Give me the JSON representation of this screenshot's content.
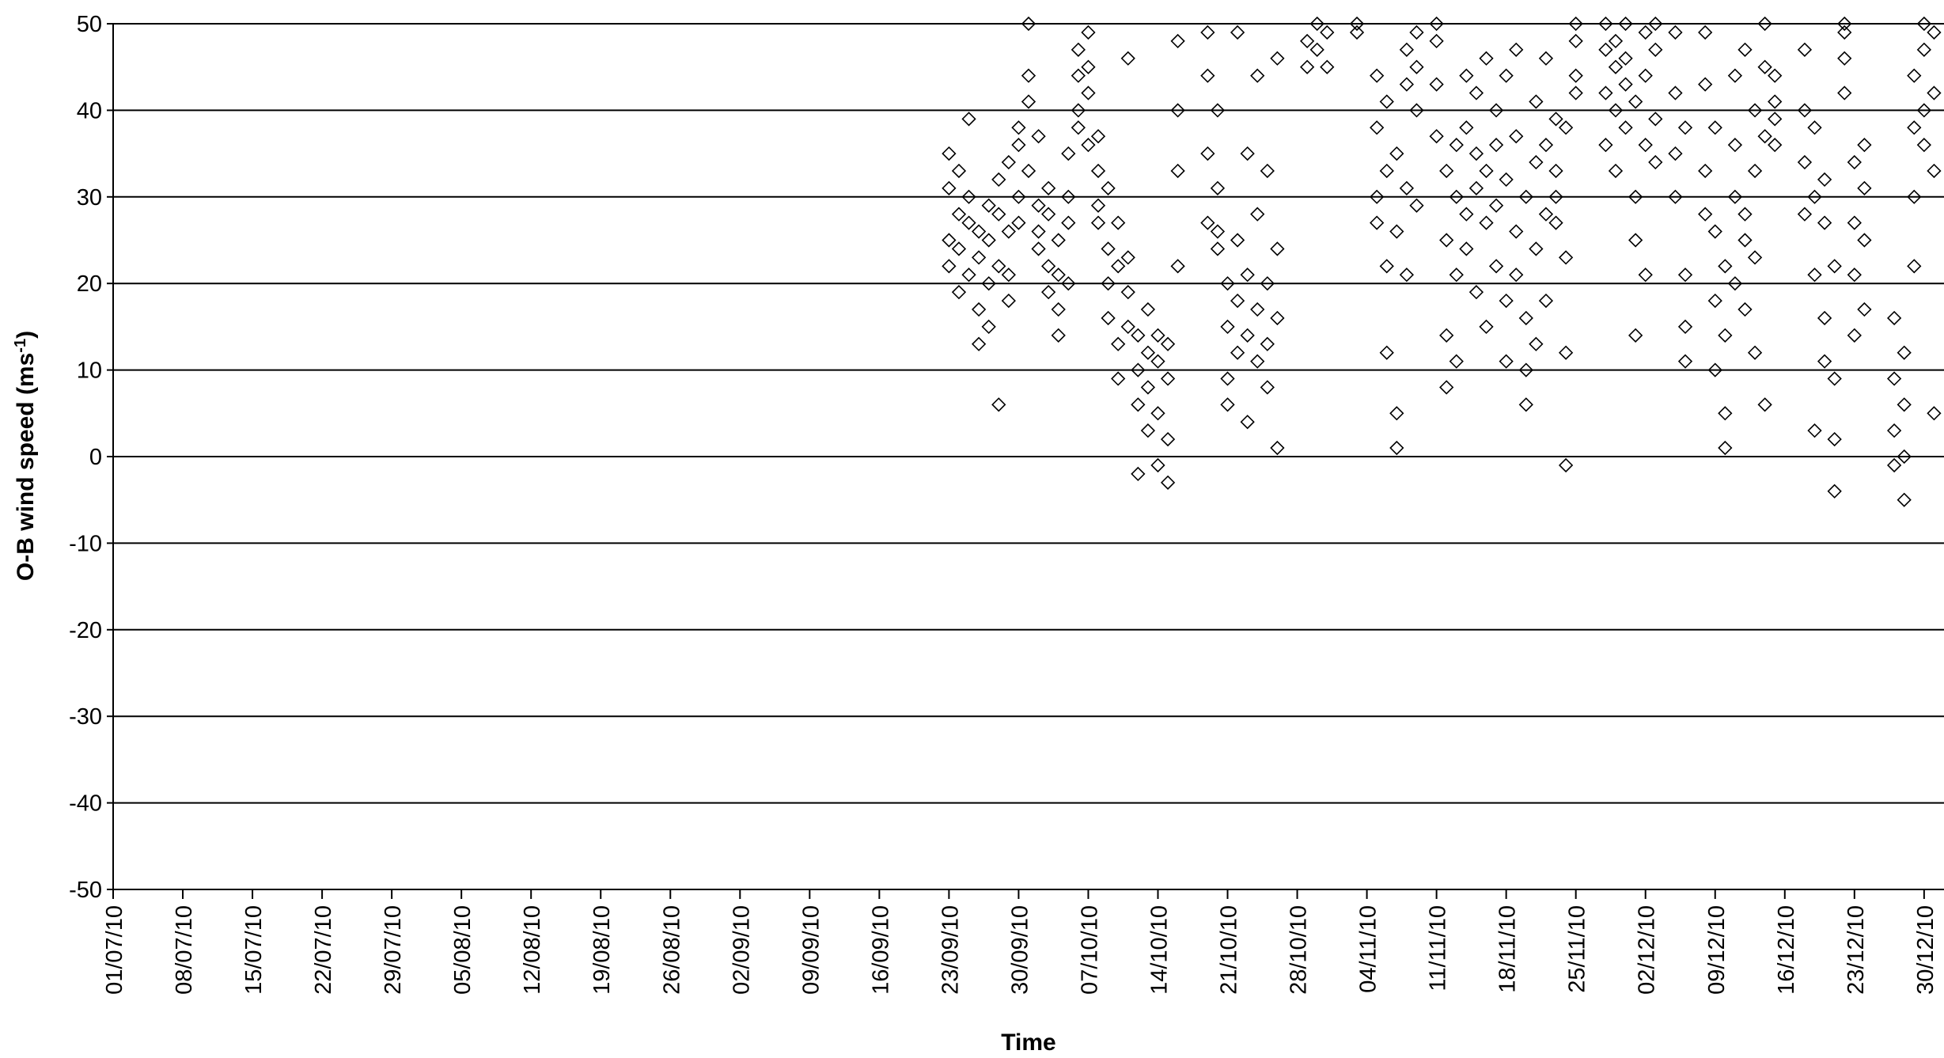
{
  "chart_data": {
    "type": "scatter",
    "xlabel": "Time",
    "ylabel": "O-B wind speed (ms",
    "ylabel_sup": "-1",
    "ylabel_close": ")",
    "ylim": [
      -50,
      50
    ],
    "yticks": [
      50,
      40,
      30,
      20,
      10,
      0,
      -10,
      -20,
      -30,
      -40,
      -50
    ],
    "xlim": [
      "2010-07-01",
      "2010-12-31"
    ],
    "xticks": [
      "01/07/10",
      "08/07/10",
      "15/07/10",
      "22/07/10",
      "29/07/10",
      "05/08/10",
      "12/08/10",
      "19/08/10",
      "26/08/10",
      "02/09/10",
      "09/09/10",
      "16/09/10",
      "23/09/10",
      "30/09/10",
      "07/10/10",
      "14/10/10",
      "21/10/10",
      "28/10/10",
      "04/11/10",
      "11/11/10",
      "18/11/10",
      "25/11/10",
      "02/12/10",
      "09/12/10",
      "16/12/10",
      "23/12/10",
      "30/12/10"
    ],
    "grid": "horizontal",
    "marker": "hollow-diamond",
    "marker_color": "#000000",
    "points": [
      [
        "2010-09-23",
        25
      ],
      [
        "2010-09-23",
        31
      ],
      [
        "2010-09-23",
        35
      ],
      [
        "2010-09-23",
        22
      ],
      [
        "2010-09-24",
        28
      ],
      [
        "2010-09-24",
        19
      ],
      [
        "2010-09-24",
        33
      ],
      [
        "2010-09-24",
        24
      ],
      [
        "2010-09-25",
        21
      ],
      [
        "2010-09-25",
        27
      ],
      [
        "2010-09-25",
        39
      ],
      [
        "2010-09-25",
        30
      ],
      [
        "2010-09-26",
        23
      ],
      [
        "2010-09-26",
        17
      ],
      [
        "2010-09-26",
        26
      ],
      [
        "2010-09-26",
        13
      ],
      [
        "2010-09-27",
        20
      ],
      [
        "2010-09-27",
        25
      ],
      [
        "2010-09-27",
        29
      ],
      [
        "2010-09-27",
        15
      ],
      [
        "2010-09-28",
        22
      ],
      [
        "2010-09-28",
        28
      ],
      [
        "2010-09-28",
        32
      ],
      [
        "2010-09-28",
        6
      ],
      [
        "2010-09-29",
        26
      ],
      [
        "2010-09-29",
        21
      ],
      [
        "2010-09-29",
        34
      ],
      [
        "2010-09-29",
        18
      ],
      [
        "2010-09-30",
        30
      ],
      [
        "2010-09-30",
        38
      ],
      [
        "2010-09-30",
        36
      ],
      [
        "2010-09-30",
        27
      ],
      [
        "2010-10-01",
        41
      ],
      [
        "2010-10-01",
        33
      ],
      [
        "2010-10-01",
        44
      ],
      [
        "2010-10-01",
        50
      ],
      [
        "2010-10-02",
        29
      ],
      [
        "2010-10-02",
        26
      ],
      [
        "2010-10-02",
        37
      ],
      [
        "2010-10-02",
        24
      ],
      [
        "2010-10-03",
        22
      ],
      [
        "2010-10-03",
        28
      ],
      [
        "2010-10-03",
        19
      ],
      [
        "2010-10-03",
        31
      ],
      [
        "2010-10-04",
        21
      ],
      [
        "2010-10-04",
        17
      ],
      [
        "2010-10-04",
        25
      ],
      [
        "2010-10-04",
        14
      ],
      [
        "2010-10-05",
        20
      ],
      [
        "2010-10-05",
        30
      ],
      [
        "2010-10-05",
        27
      ],
      [
        "2010-10-05",
        35
      ],
      [
        "2010-10-06",
        40
      ],
      [
        "2010-10-06",
        44
      ],
      [
        "2010-10-06",
        47
      ],
      [
        "2010-10-06",
        38
      ],
      [
        "2010-10-07",
        42
      ],
      [
        "2010-10-07",
        49
      ],
      [
        "2010-10-07",
        45
      ],
      [
        "2010-10-07",
        36
      ],
      [
        "2010-10-08",
        33
      ],
      [
        "2010-10-08",
        29
      ],
      [
        "2010-10-08",
        37
      ],
      [
        "2010-10-08",
        27
      ],
      [
        "2010-10-09",
        24
      ],
      [
        "2010-10-09",
        20
      ],
      [
        "2010-10-09",
        31
      ],
      [
        "2010-10-09",
        16
      ],
      [
        "2010-10-10",
        22
      ],
      [
        "2010-10-10",
        13
      ],
      [
        "2010-10-10",
        9
      ],
      [
        "2010-10-10",
        27
      ],
      [
        "2010-10-11",
        19
      ],
      [
        "2010-10-11",
        15
      ],
      [
        "2010-10-11",
        23
      ],
      [
        "2010-10-11",
        46
      ],
      [
        "2010-10-12",
        14
      ],
      [
        "2010-10-12",
        10
      ],
      [
        "2010-10-12",
        6
      ],
      [
        "2010-10-12",
        -2
      ],
      [
        "2010-10-13",
        12
      ],
      [
        "2010-10-13",
        8
      ],
      [
        "2010-10-13",
        3
      ],
      [
        "2010-10-13",
        17
      ],
      [
        "2010-10-14",
        11
      ],
      [
        "2010-10-14",
        5
      ],
      [
        "2010-10-14",
        -1
      ],
      [
        "2010-10-14",
        14
      ],
      [
        "2010-10-15",
        9
      ],
      [
        "2010-10-15",
        13
      ],
      [
        "2010-10-15",
        2
      ],
      [
        "2010-10-15",
        -3
      ],
      [
        "2010-10-16",
        33
      ],
      [
        "2010-10-16",
        40
      ],
      [
        "2010-10-16",
        48
      ],
      [
        "2010-10-16",
        22
      ],
      [
        "2010-10-19",
        27
      ],
      [
        "2010-10-19",
        35
      ],
      [
        "2010-10-19",
        44
      ],
      [
        "2010-10-19",
        49
      ],
      [
        "2010-10-20",
        26
      ],
      [
        "2010-10-20",
        40
      ],
      [
        "2010-10-20",
        31
      ],
      [
        "2010-10-20",
        24
      ],
      [
        "2010-10-21",
        15
      ],
      [
        "2010-10-21",
        9
      ],
      [
        "2010-10-21",
        20
      ],
      [
        "2010-10-21",
        6
      ],
      [
        "2010-10-22",
        12
      ],
      [
        "2010-10-22",
        18
      ],
      [
        "2010-10-22",
        25
      ],
      [
        "2010-10-22",
        49
      ],
      [
        "2010-10-23",
        21
      ],
      [
        "2010-10-23",
        14
      ],
      [
        "2010-10-23",
        4
      ],
      [
        "2010-10-23",
        35
      ],
      [
        "2010-10-24",
        17
      ],
      [
        "2010-10-24",
        11
      ],
      [
        "2010-10-24",
        44
      ],
      [
        "2010-10-24",
        28
      ],
      [
        "2010-10-25",
        13
      ],
      [
        "2010-10-25",
        20
      ],
      [
        "2010-10-25",
        8
      ],
      [
        "2010-10-25",
        33
      ],
      [
        "2010-10-26",
        16
      ],
      [
        "2010-10-26",
        24
      ],
      [
        "2010-10-26",
        1
      ],
      [
        "2010-10-26",
        46
      ],
      [
        "2010-10-29",
        48
      ],
      [
        "2010-10-29",
        45
      ],
      [
        "2010-10-30",
        50
      ],
      [
        "2010-10-30",
        47
      ],
      [
        "2010-10-31",
        49
      ],
      [
        "2010-10-31",
        45
      ],
      [
        "2010-11-03",
        49
      ],
      [
        "2010-11-03",
        50
      ],
      [
        "2010-11-05",
        44
      ],
      [
        "2010-11-05",
        38
      ],
      [
        "2010-11-05",
        30
      ],
      [
        "2010-11-05",
        27
      ],
      [
        "2010-11-06",
        41
      ],
      [
        "2010-11-06",
        33
      ],
      [
        "2010-11-06",
        22
      ],
      [
        "2010-11-06",
        12
      ],
      [
        "2010-11-07",
        35
      ],
      [
        "2010-11-07",
        26
      ],
      [
        "2010-11-07",
        5
      ],
      [
        "2010-11-07",
        1
      ],
      [
        "2010-11-08",
        43
      ],
      [
        "2010-11-08",
        31
      ],
      [
        "2010-11-08",
        21
      ],
      [
        "2010-11-08",
        47
      ],
      [
        "2010-11-09",
        49
      ],
      [
        "2010-11-09",
        40
      ],
      [
        "2010-11-09",
        29
      ],
      [
        "2010-11-09",
        45
      ],
      [
        "2010-11-11",
        48
      ],
      [
        "2010-11-11",
        43
      ],
      [
        "2010-11-11",
        37
      ],
      [
        "2010-11-11",
        50
      ],
      [
        "2010-11-12",
        33
      ],
      [
        "2010-11-12",
        25
      ],
      [
        "2010-11-12",
        14
      ],
      [
        "2010-11-12",
        8
      ],
      [
        "2010-11-13",
        30
      ],
      [
        "2010-11-13",
        21
      ],
      [
        "2010-11-13",
        36
      ],
      [
        "2010-11-13",
        11
      ],
      [
        "2010-11-14",
        38
      ],
      [
        "2010-11-14",
        28
      ],
      [
        "2010-11-14",
        44
      ],
      [
        "2010-11-14",
        24
      ],
      [
        "2010-11-15",
        35
      ],
      [
        "2010-11-15",
        42
      ],
      [
        "2010-11-15",
        31
      ],
      [
        "2010-11-15",
        19
      ],
      [
        "2010-11-16",
        27
      ],
      [
        "2010-11-16",
        46
      ],
      [
        "2010-11-16",
        33
      ],
      [
        "2010-11-16",
        15
      ],
      [
        "2010-11-17",
        40
      ],
      [
        "2010-11-17",
        29
      ],
      [
        "2010-11-17",
        22
      ],
      [
        "2010-11-17",
        36
      ],
      [
        "2010-11-18",
        44
      ],
      [
        "2010-11-18",
        32
      ],
      [
        "2010-11-18",
        18
      ],
      [
        "2010-11-18",
        11
      ],
      [
        "2010-11-19",
        37
      ],
      [
        "2010-11-19",
        26
      ],
      [
        "2010-11-19",
        47
      ],
      [
        "2010-11-19",
        21
      ],
      [
        "2010-11-20",
        30
      ],
      [
        "2010-11-20",
        16
      ],
      [
        "2010-11-20",
        10
      ],
      [
        "2010-11-20",
        6
      ],
      [
        "2010-11-21",
        41
      ],
      [
        "2010-11-21",
        34
      ],
      [
        "2010-11-21",
        24
      ],
      [
        "2010-11-21",
        13
      ],
      [
        "2010-11-22",
        36
      ],
      [
        "2010-11-22",
        28
      ],
      [
        "2010-11-22",
        46
      ],
      [
        "2010-11-22",
        18
      ],
      [
        "2010-11-23",
        33
      ],
      [
        "2010-11-23",
        27
      ],
      [
        "2010-11-23",
        39
      ],
      [
        "2010-11-23",
        30
      ],
      [
        "2010-11-24",
        38
      ],
      [
        "2010-11-24",
        23
      ],
      [
        "2010-11-24",
        12
      ],
      [
        "2010-11-24",
        -1
      ],
      [
        "2010-11-25",
        42
      ],
      [
        "2010-11-25",
        44
      ],
      [
        "2010-11-25",
        48
      ],
      [
        "2010-11-25",
        50
      ],
      [
        "2010-11-28",
        47
      ],
      [
        "2010-11-28",
        42
      ],
      [
        "2010-11-28",
        36
      ],
      [
        "2010-11-28",
        50
      ],
      [
        "2010-11-29",
        45
      ],
      [
        "2010-11-29",
        40
      ],
      [
        "2010-11-29",
        33
      ],
      [
        "2010-11-29",
        48
      ],
      [
        "2010-11-30",
        46
      ],
      [
        "2010-11-30",
        43
      ],
      [
        "2010-11-30",
        50
      ],
      [
        "2010-11-30",
        38
      ],
      [
        "2010-12-01",
        41
      ],
      [
        "2010-12-01",
        30
      ],
      [
        "2010-12-01",
        25
      ],
      [
        "2010-12-01",
        14
      ],
      [
        "2010-12-02",
        44
      ],
      [
        "2010-12-02",
        36
      ],
      [
        "2010-12-02",
        21
      ],
      [
        "2010-12-02",
        49
      ],
      [
        "2010-12-03",
        47
      ],
      [
        "2010-12-03",
        34
      ],
      [
        "2010-12-03",
        39
      ],
      [
        "2010-12-03",
        50
      ],
      [
        "2010-12-05",
        49
      ],
      [
        "2010-12-05",
        42
      ],
      [
        "2010-12-05",
        35
      ],
      [
        "2010-12-05",
        30
      ],
      [
        "2010-12-06",
        38
      ],
      [
        "2010-12-06",
        21
      ],
      [
        "2010-12-06",
        15
      ],
      [
        "2010-12-06",
        11
      ],
      [
        "2010-12-08",
        49
      ],
      [
        "2010-12-08",
        43
      ],
      [
        "2010-12-08",
        33
      ],
      [
        "2010-12-08",
        28
      ],
      [
        "2010-12-09",
        26
      ],
      [
        "2010-12-09",
        18
      ],
      [
        "2010-12-09",
        10
      ],
      [
        "2010-12-09",
        38
      ],
      [
        "2010-12-10",
        22
      ],
      [
        "2010-12-10",
        14
      ],
      [
        "2010-12-10",
        5
      ],
      [
        "2010-12-10",
        1
      ],
      [
        "2010-12-11",
        30
      ],
      [
        "2010-12-11",
        20
      ],
      [
        "2010-12-11",
        44
      ],
      [
        "2010-12-11",
        36
      ],
      [
        "2010-12-12",
        25
      ],
      [
        "2010-12-12",
        17
      ],
      [
        "2010-12-12",
        28
      ],
      [
        "2010-12-12",
        47
      ],
      [
        "2010-12-13",
        33
      ],
      [
        "2010-12-13",
        23
      ],
      [
        "2010-12-13",
        40
      ],
      [
        "2010-12-13",
        12
      ],
      [
        "2010-12-14",
        45
      ],
      [
        "2010-12-14",
        37
      ],
      [
        "2010-12-14",
        6
      ],
      [
        "2010-12-14",
        50
      ],
      [
        "2010-12-15",
        41
      ],
      [
        "2010-12-15",
        44
      ],
      [
        "2010-12-15",
        39
      ],
      [
        "2010-12-15",
        36
      ],
      [
        "2010-12-18",
        47
      ],
      [
        "2010-12-18",
        40
      ],
      [
        "2010-12-18",
        34
      ],
      [
        "2010-12-18",
        28
      ],
      [
        "2010-12-19",
        38
      ],
      [
        "2010-12-19",
        30
      ],
      [
        "2010-12-19",
        21
      ],
      [
        "2010-12-19",
        3
      ],
      [
        "2010-12-20",
        27
      ],
      [
        "2010-12-20",
        16
      ],
      [
        "2010-12-20",
        11
      ],
      [
        "2010-12-20",
        32
      ],
      [
        "2010-12-21",
        22
      ],
      [
        "2010-12-21",
        9
      ],
      [
        "2010-12-21",
        2
      ],
      [
        "2010-12-21",
        -4
      ],
      [
        "2010-12-22",
        46
      ],
      [
        "2010-12-22",
        49
      ],
      [
        "2010-12-22",
        42
      ],
      [
        "2010-12-22",
        50
      ],
      [
        "2010-12-23",
        34
      ],
      [
        "2010-12-23",
        27
      ],
      [
        "2010-12-23",
        21
      ],
      [
        "2010-12-23",
        14
      ],
      [
        "2010-12-24",
        31
      ],
      [
        "2010-12-24",
        25
      ],
      [
        "2010-12-24",
        17
      ],
      [
        "2010-12-24",
        36
      ],
      [
        "2010-12-27",
        16
      ],
      [
        "2010-12-27",
        9
      ],
      [
        "2010-12-27",
        3
      ],
      [
        "2010-12-27",
        -1
      ],
      [
        "2010-12-28",
        12
      ],
      [
        "2010-12-28",
        6
      ],
      [
        "2010-12-28",
        0
      ],
      [
        "2010-12-28",
        -5
      ],
      [
        "2010-12-29",
        44
      ],
      [
        "2010-12-29",
        38
      ],
      [
        "2010-12-29",
        30
      ],
      [
        "2010-12-29",
        22
      ],
      [
        "2010-12-30",
        47
      ],
      [
        "2010-12-30",
        40
      ],
      [
        "2010-12-30",
        36
      ],
      [
        "2010-12-30",
        50
      ],
      [
        "2010-12-31",
        49
      ],
      [
        "2010-12-31",
        42
      ],
      [
        "2010-12-31",
        33
      ],
      [
        "2010-12-31",
        5
      ]
    ]
  }
}
